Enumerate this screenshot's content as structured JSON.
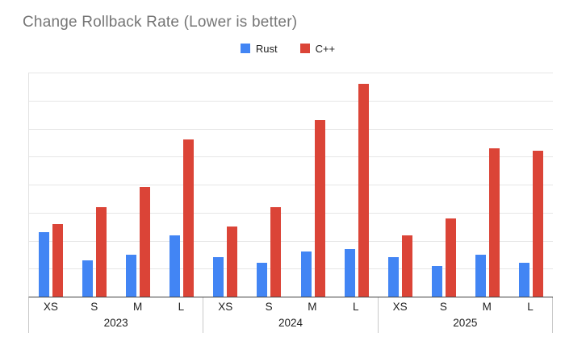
{
  "title": "Change Rollback Rate (Lower is better)",
  "chart_data": {
    "type": "bar",
    "title": "Change Rollback Rate (Lower is better)",
    "group_labels": [
      "2023",
      "2024",
      "2025"
    ],
    "categories": [
      "XS",
      "S",
      "M",
      "L"
    ],
    "series": [
      {
        "id": "rust",
        "name": "Rust",
        "color": "#4285f4",
        "values": [
          [
            2.3,
            1.3,
            1.5,
            2.2
          ],
          [
            1.4,
            1.2,
            1.6,
            1.7
          ],
          [
            1.4,
            1.1,
            1.5,
            1.2
          ]
        ]
      },
      {
        "id": "cpp",
        "name": "C++",
        "color": "#db4437",
        "values": [
          [
            2.6,
            3.2,
            3.9,
            5.6
          ],
          [
            2.5,
            3.2,
            6.3,
            7.6
          ],
          [
            2.2,
            2.8,
            5.3,
            5.2
          ]
        ]
      }
    ],
    "ylim": [
      0,
      8
    ],
    "gridline_step": 1,
    "grid": true,
    "legend_position": "top-center",
    "y_axis_labels_visible": false,
    "axis_colors": {
      "gridline": "#e6e6e6",
      "baseline": "#424242",
      "divider": "#c9c9c9"
    }
  }
}
